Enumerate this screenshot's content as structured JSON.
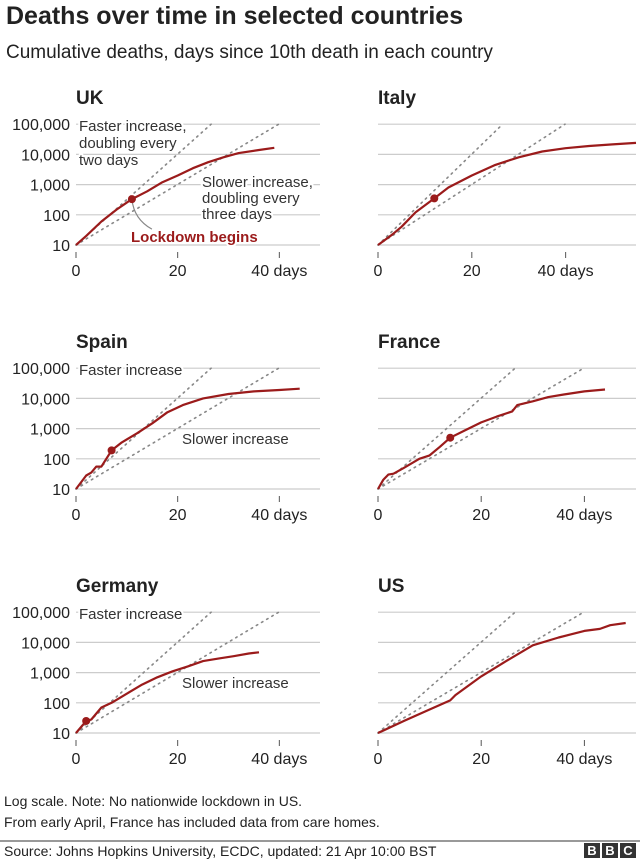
{
  "title": "Deaths over time in selected countries",
  "subtitle": "Cumulative deaths, days since 10th death in each country",
  "notes": [
    "Log scale. Note: No nationwide lockdown in US.",
    "From early April, France has included data from care homes."
  ],
  "source": "Source: Johns Hopkins University, ECDC, updated:  21 Apr 10:00 BST",
  "logo": [
    "B",
    "B",
    "C"
  ],
  "colors": {
    "line": "#9b1b1b",
    "grid": "#cccccc",
    "dots": "#888888",
    "text": "#222222",
    "annotation": "#333333"
  },
  "chart_data": [
    {
      "type": "line",
      "title": "UK",
      "yscale": "log",
      "ylim": [
        10,
        100000
      ],
      "xlim": [
        0,
        48
      ],
      "yticks": [
        10,
        100,
        1000,
        10000,
        100000
      ],
      "ytick_labels": [
        "10",
        "100",
        "1,000",
        "10,000",
        "100,000"
      ],
      "xticks": [
        0,
        20,
        40
      ],
      "xtick_labels": [
        "0",
        "20",
        "40 days"
      ],
      "x": [
        0,
        2,
        5,
        8,
        11,
        14,
        17,
        20,
        23,
        26,
        29,
        32,
        36,
        39
      ],
      "y": [
        10,
        20,
        60,
        150,
        330,
        600,
        1200,
        2000,
        3500,
        5500,
        8000,
        11000,
        14000,
        16500
      ],
      "lockdown": {
        "x": 11,
        "y": 330,
        "label": "Lockdown begins"
      },
      "faster_label": [
        "Faster increase,",
        "doubling every",
        "two days"
      ],
      "slower_label": [
        "Slower increase,",
        "doubling every",
        "three days"
      ]
    },
    {
      "type": "line",
      "title": "Italy",
      "yscale": "log",
      "ylim": [
        10,
        100000
      ],
      "xlim": [
        0,
        55
      ],
      "yticks": [
        10,
        100,
        1000,
        10000,
        100000
      ],
      "xticks": [
        0,
        20,
        40
      ],
      "xtick_labels": [
        "0",
        "20",
        "40 days"
      ],
      "x": [
        0,
        3,
        5,
        8,
        12,
        15,
        20,
        25,
        30,
        35,
        40,
        45,
        50,
        55
      ],
      "y": [
        10,
        22,
        40,
        120,
        350,
        800,
        2000,
        4500,
        8000,
        12500,
        16000,
        19000,
        21500,
        24000
      ],
      "lockdown": {
        "x": 12,
        "y": 350
      }
    },
    {
      "type": "line",
      "title": "Spain",
      "yscale": "log",
      "ylim": [
        10,
        100000
      ],
      "xlim": [
        0,
        48
      ],
      "yticks": [
        10,
        100,
        1000,
        10000,
        100000
      ],
      "ytick_labels": [
        "10",
        "100",
        "1,000",
        "10,000",
        "100,000"
      ],
      "xticks": [
        0,
        20,
        40
      ],
      "xtick_labels": [
        "0",
        "20",
        "40 days"
      ],
      "x": [
        0,
        2,
        3,
        4,
        5,
        7,
        9,
        12,
        15,
        18,
        21,
        25,
        30,
        35,
        40,
        44
      ],
      "y": [
        10,
        28,
        35,
        55,
        55,
        190,
        350,
        700,
        1500,
        3500,
        6000,
        10000,
        14000,
        17000,
        19000,
        21000
      ],
      "lockdown": {
        "x": 7,
        "y": 190
      },
      "faster_label": [
        "Faster increase"
      ],
      "slower_label": [
        "Slower increase"
      ]
    },
    {
      "type": "line",
      "title": "France",
      "yscale": "log",
      "ylim": [
        10,
        100000
      ],
      "xlim": [
        0,
        50
      ],
      "yticks": [
        10,
        100,
        1000,
        10000,
        100000
      ],
      "xticks": [
        0,
        20,
        40
      ],
      "xtick_labels": [
        "0",
        "20",
        "40 days"
      ],
      "x": [
        0,
        1,
        2,
        3,
        5,
        8,
        10,
        12,
        14,
        17,
        20,
        23,
        26,
        27,
        30,
        33,
        36,
        40,
        44
      ],
      "y": [
        10,
        20,
        30,
        32,
        50,
        100,
        130,
        250,
        500,
        900,
        1600,
        2500,
        3700,
        6000,
        8000,
        11000,
        13500,
        17000,
        19700
      ],
      "lockdown": {
        "x": 14,
        "y": 500
      }
    },
    {
      "type": "line",
      "title": "Germany",
      "yscale": "log",
      "ylim": [
        10,
        100000
      ],
      "xlim": [
        0,
        48
      ],
      "yticks": [
        10,
        100,
        1000,
        10000,
        100000
      ],
      "ytick_labels": [
        "10",
        "100",
        "1,000",
        "10,000",
        "100,000"
      ],
      "xticks": [
        0,
        20,
        40
      ],
      "xtick_labels": [
        "0",
        "20",
        "40 days"
      ],
      "x": [
        0,
        2,
        3,
        5,
        7,
        10,
        13,
        16,
        19,
        22,
        25,
        28,
        31,
        34,
        36
      ],
      "y": [
        10,
        25,
        28,
        70,
        100,
        200,
        400,
        700,
        1100,
        1600,
        2400,
        2900,
        3500,
        4300,
        4700
      ],
      "lockdown": {
        "x": 2,
        "y": 25
      },
      "faster_label": [
        "Faster increase"
      ],
      "slower_label": [
        "Slower increase"
      ]
    },
    {
      "type": "line",
      "title": "US",
      "yscale": "log",
      "ylim": [
        10,
        100000
      ],
      "xlim": [
        0,
        50
      ],
      "yticks": [
        10,
        100,
        1000,
        10000,
        100000
      ],
      "xticks": [
        0,
        20,
        40
      ],
      "xtick_labels": [
        "0",
        "20",
        "40 days"
      ],
      "x": [
        0,
        5,
        10,
        14,
        15,
        20,
        25,
        30,
        35,
        40,
        43,
        45,
        48
      ],
      "y": [
        10,
        25,
        60,
        120,
        180,
        750,
        2500,
        8000,
        14500,
        24000,
        28000,
        37000,
        44000
      ]
    }
  ]
}
